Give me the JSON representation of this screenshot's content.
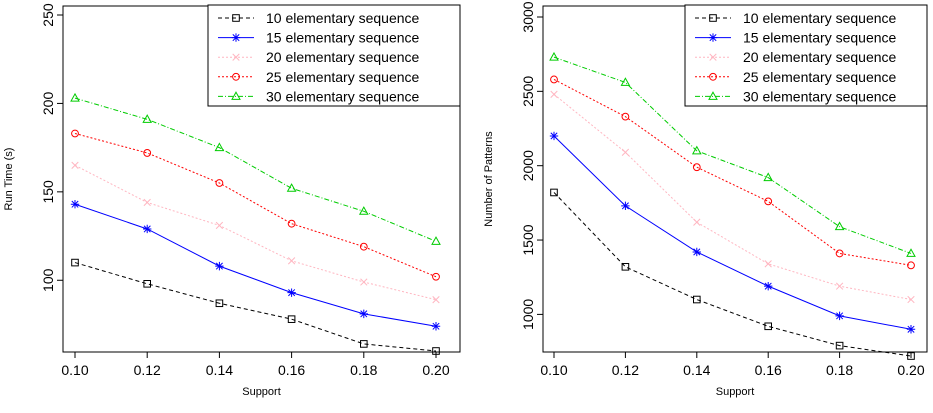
{
  "chart_data": [
    {
      "type": "line",
      "title": "",
      "xlabel": "Support",
      "ylabel": "Run Time (s)",
      "x": [
        0.1,
        0.12,
        0.14,
        0.16,
        0.18,
        0.2
      ],
      "x_tick_labels": [
        "0.10",
        "0.12",
        "0.14",
        "0.16",
        "0.18",
        "0.20"
      ],
      "xlim": [
        0.1,
        0.2
      ],
      "ylim": [
        60,
        250
      ],
      "y_ticks": [
        100,
        150,
        200,
        250
      ],
      "y_tick_labels": [
        "100",
        "150",
        "200",
        "250"
      ],
      "grid": false,
      "legend_position": "top-right",
      "series": [
        {
          "name": "10 elementary sequence",
          "color": "#000000",
          "marker": "square",
          "dash": "dashed",
          "values": [
            110,
            98,
            87,
            78,
            64,
            60
          ]
        },
        {
          "name": "15 elementary sequence",
          "color": "#0000ff",
          "marker": "star",
          "dash": "solid",
          "values": [
            143,
            129,
            108,
            93,
            81,
            74
          ]
        },
        {
          "name": "20 elementary sequence",
          "color": "#ffb6c1",
          "marker": "cross",
          "dash": "dotted",
          "values": [
            165,
            144,
            131,
            111,
            99,
            89
          ]
        },
        {
          "name": "25 elementary sequence",
          "color": "#ff0000",
          "marker": "circle",
          "dash": "dotted",
          "values": [
            183,
            172,
            155,
            132,
            119,
            102
          ]
        },
        {
          "name": "30 elementary sequence",
          "color": "#00cc00",
          "marker": "triangle",
          "dash": "dashdot",
          "values": [
            203,
            191,
            175,
            152,
            139,
            122
          ]
        }
      ]
    },
    {
      "type": "line",
      "title": "",
      "xlabel": "Support",
      "ylabel": "Number of Patterns",
      "x": [
        0.1,
        0.12,
        0.14,
        0.16,
        0.18,
        0.2
      ],
      "x_tick_labels": [
        "0.10",
        "0.12",
        "0.14",
        "0.16",
        "0.18",
        "0.20"
      ],
      "xlim": [
        0.1,
        0.2
      ],
      "ylim": [
        700,
        3000
      ],
      "y_ticks": [
        1000,
        1500,
        2000,
        2500,
        3000
      ],
      "y_tick_labels": [
        "1000",
        "1500",
        "2000",
        "2500",
        "3000"
      ],
      "grid": false,
      "legend_position": "top-right",
      "series": [
        {
          "name": "10 elementary sequence",
          "color": "#000000",
          "marker": "square",
          "dash": "dashed",
          "values": [
            1820,
            1320,
            1100,
            920,
            790,
            720
          ]
        },
        {
          "name": "15 elementary sequence",
          "color": "#0000ff",
          "marker": "star",
          "dash": "solid",
          "values": [
            2200,
            1730,
            1420,
            1190,
            990,
            900
          ]
        },
        {
          "name": "20 elementary sequence",
          "color": "#ffb6c1",
          "marker": "cross",
          "dash": "dotted",
          "values": [
            2480,
            2090,
            1620,
            1340,
            1190,
            1100
          ]
        },
        {
          "name": "25 elementary sequence",
          "color": "#ff0000",
          "marker": "circle",
          "dash": "dotted",
          "values": [
            2580,
            2330,
            1990,
            1760,
            1410,
            1330
          ]
        },
        {
          "name": "30 elementary sequence",
          "color": "#00cc00",
          "marker": "triangle",
          "dash": "dashdot",
          "values": [
            2730,
            2560,
            2100,
            1920,
            1590,
            1410
          ]
        }
      ]
    }
  ]
}
